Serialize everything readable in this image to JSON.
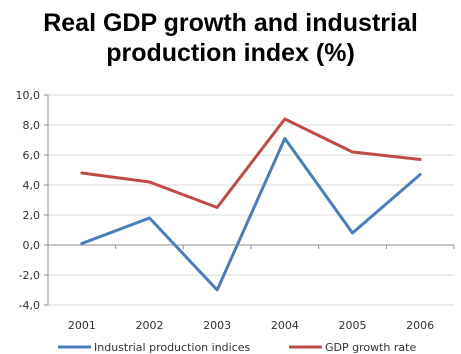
{
  "chart_data": {
    "type": "line",
    "title_lines": [
      "Real GDP growth and industrial",
      "production index (%)"
    ],
    "x": [
      "2001",
      "2002",
      "2003",
      "2004",
      "2005",
      "2006"
    ],
    "ylim": [
      -4.0,
      10.0
    ],
    "y_ticks": [
      "10,0",
      "8,0",
      "6,0",
      "4,0",
      "2,0",
      "0,0",
      "-2,0",
      "-4,0"
    ],
    "y_tick_values": [
      10,
      8,
      6,
      4,
      2,
      0,
      -2,
      -4
    ],
    "grid": true,
    "legend_position": "bottom",
    "series": [
      {
        "name": "Industrial production indices",
        "color": "#4a7ebb",
        "values": [
          0.1,
          1.8,
          -3.0,
          7.1,
          0.8,
          4.7
        ]
      },
      {
        "name": "GDP growth rate",
        "color": "#be4b48",
        "values": [
          4.8,
          4.2,
          2.5,
          8.4,
          6.2,
          5.7
        ]
      }
    ]
  }
}
